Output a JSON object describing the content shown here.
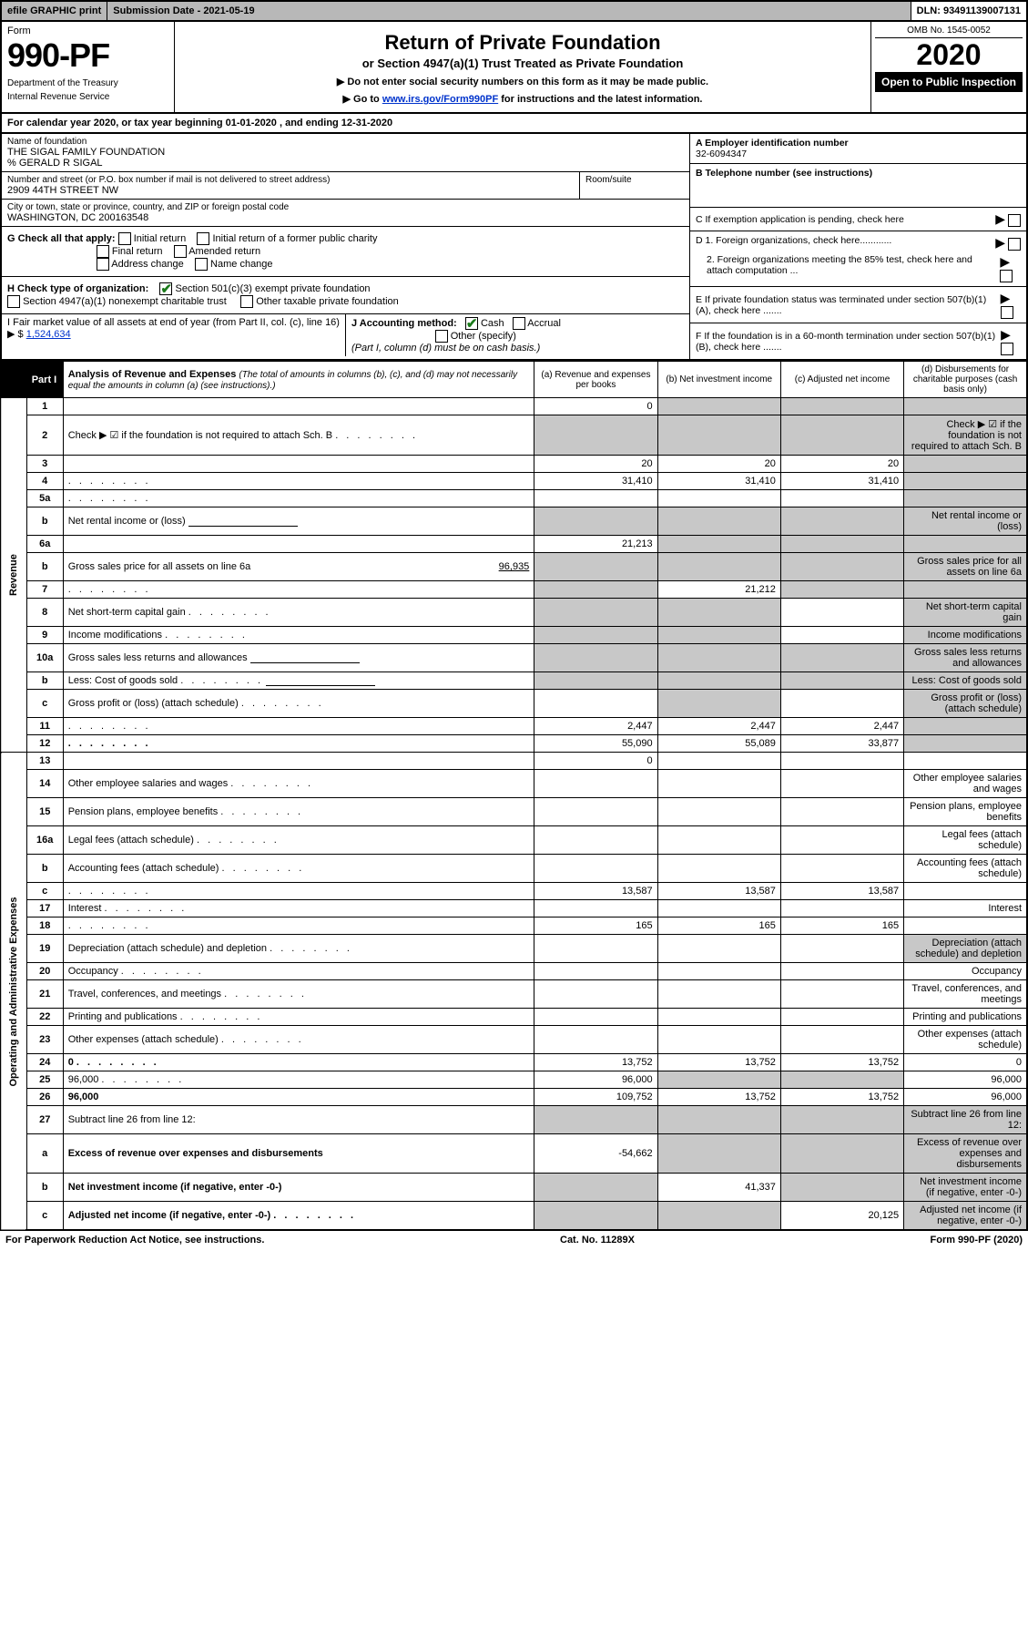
{
  "topbar": {
    "efile": "efile GRAPHIC print",
    "subdate_label": "Submission Date - 2021-05-19",
    "dln": "DLN: 93491139007131"
  },
  "header": {
    "form_label": "Form",
    "form_number": "990-PF",
    "dept1": "Department of the Treasury",
    "dept2": "Internal Revenue Service",
    "title": "Return of Private Foundation",
    "subtitle": "or Section 4947(a)(1) Trust Treated as Private Foundation",
    "instr1": "▶ Do not enter social security numbers on this form as it may be made public.",
    "instr2_pre": "▶ Go to ",
    "instr2_link": "www.irs.gov/Form990PF",
    "instr2_post": " for instructions and the latest information.",
    "omb": "OMB No. 1545-0052",
    "year": "2020",
    "open": "Open to Public Inspection"
  },
  "cal_year": "For calendar year 2020, or tax year beginning 01-01-2020                             , and ending 12-31-2020",
  "info": {
    "name_label": "Name of foundation",
    "name": "THE SIGAL FAMILY FOUNDATION",
    "care_of": "% GERALD R SIGAL",
    "addr_label": "Number and street (or P.O. box number if mail is not delivered to street address)",
    "addr": "2909 44TH STREET NW",
    "room_label": "Room/suite",
    "city_label": "City or town, state or province, country, and ZIP or foreign postal code",
    "city": "WASHINGTON, DC  200163548",
    "ein_label": "A Employer identification number",
    "ein": "32-6094347",
    "tel_label": "B Telephone number (see instructions)",
    "c_label": "C If exemption application is pending, check here",
    "d1": "D 1. Foreign organizations, check here............",
    "d2": "2. Foreign organizations meeting the 85% test, check here and attach computation ...",
    "e_label": "E  If private foundation status was terminated under section 507(b)(1)(A), check here .......",
    "f_label": "F  If the foundation is in a 60-month termination under section 507(b)(1)(B), check here ......."
  },
  "g": {
    "label": "G Check all that apply:",
    "opts": [
      "Initial return",
      "Initial return of a former public charity",
      "Final return",
      "Amended return",
      "Address change",
      "Name change"
    ]
  },
  "h": {
    "label": "H Check type of organization:",
    "opt1": "Section 501(c)(3) exempt private foundation",
    "opt2": "Section 4947(a)(1) nonexempt charitable trust",
    "opt3": "Other taxable private foundation"
  },
  "i": {
    "label": "I Fair market value of all assets at end of year (from Part II, col. (c), line 16) ▶ $",
    "value": "1,524,634"
  },
  "j": {
    "label": "J Accounting method:",
    "cash": "Cash",
    "accrual": "Accrual",
    "other": "Other (specify)",
    "note": "(Part I, column (d) must be on cash basis.)"
  },
  "part1": {
    "label": "Part I",
    "title": "Analysis of Revenue and Expenses",
    "note": "(The total of amounts in columns (b), (c), and (d) may not necessarily equal the amounts in column (a) (see instructions).)",
    "col_a": "(a)   Revenue and expenses per books",
    "col_b": "(b)  Net investment income",
    "col_c": "(c)  Adjusted net income",
    "col_d": "(d)  Disbursements for charitable purposes (cash basis only)"
  },
  "revenue_label": "Revenue",
  "expenses_label": "Operating and Administrative Expenses",
  "rows": [
    {
      "n": "1",
      "d": "",
      "a": "0",
      "b": "",
      "c": "",
      "shade_bcd": true
    },
    {
      "n": "2",
      "d": "Check ▶ ☑ if the foundation is not required to attach Sch. B",
      "dots": true,
      "shade_abcd": true
    },
    {
      "n": "3",
      "d": "",
      "a": "20",
      "b": "20",
      "c": "20",
      "shade_d": true
    },
    {
      "n": "4",
      "d": "",
      "dots": true,
      "a": "31,410",
      "b": "31,410",
      "c": "31,410",
      "shade_d": true
    },
    {
      "n": "5a",
      "d": "",
      "dots": true,
      "a": "",
      "b": "",
      "c": "",
      "shade_d": true
    },
    {
      "n": "b",
      "d": "Net rental income or (loss)",
      "underline": true,
      "shade_abcd": true
    },
    {
      "n": "6a",
      "d": "",
      "a": "21,213",
      "b": "",
      "c": "",
      "shade_bcd": true
    },
    {
      "n": "b",
      "d": "Gross sales price for all assets on line 6a",
      "inline_val": "96,935",
      "shade_abcd": true
    },
    {
      "n": "7",
      "d": "",
      "dots": true,
      "a": "",
      "b": "21,212",
      "c": "",
      "shade_a": true,
      "shade_cd": true
    },
    {
      "n": "8",
      "d": "Net short-term capital gain",
      "dots": true,
      "shade_ab": true,
      "shade_d": true
    },
    {
      "n": "9",
      "d": "Income modifications",
      "dots": true,
      "shade_ab": true,
      "shade_d": true
    },
    {
      "n": "10a",
      "d": "Gross sales less returns and allowances",
      "underline": true,
      "shade_abcd": true
    },
    {
      "n": "b",
      "d": "Less: Cost of goods sold",
      "dots": true,
      "underline": true,
      "shade_abcd": true
    },
    {
      "n": "c",
      "d": "Gross profit or (loss) (attach schedule)",
      "dots": true,
      "shade_b": true,
      "shade_d": true
    },
    {
      "n": "11",
      "d": "",
      "dots": true,
      "a": "2,447",
      "b": "2,447",
      "c": "2,447",
      "shade_d": true
    },
    {
      "n": "12",
      "d": "",
      "dots": true,
      "bold": true,
      "a": "55,090",
      "b": "55,089",
      "c": "33,877",
      "shade_d": true
    },
    {
      "n": "13",
      "d": "",
      "a": "0",
      "b": "",
      "c": ""
    },
    {
      "n": "14",
      "d": "Other employee salaries and wages",
      "dots": true
    },
    {
      "n": "15",
      "d": "Pension plans, employee benefits",
      "dots": true
    },
    {
      "n": "16a",
      "d": "Legal fees (attach schedule)",
      "dots": true
    },
    {
      "n": "b",
      "d": "Accounting fees (attach schedule)",
      "dots": true
    },
    {
      "n": "c",
      "d": "",
      "dots": true,
      "a": "13,587",
      "b": "13,587",
      "c": "13,587"
    },
    {
      "n": "17",
      "d": "Interest",
      "dots": true
    },
    {
      "n": "18",
      "d": "",
      "dots": true,
      "a": "165",
      "b": "165",
      "c": "165"
    },
    {
      "n": "19",
      "d": "Depreciation (attach schedule) and depletion",
      "dots": true,
      "shade_d": true
    },
    {
      "n": "20",
      "d": "Occupancy",
      "dots": true
    },
    {
      "n": "21",
      "d": "Travel, conferences, and meetings",
      "dots": true
    },
    {
      "n": "22",
      "d": "Printing and publications",
      "dots": true
    },
    {
      "n": "23",
      "d": "Other expenses (attach schedule)",
      "dots": true
    },
    {
      "n": "24",
      "d": "0",
      "dots": true,
      "bold": true,
      "a": "13,752",
      "b": "13,752",
      "c": "13,752"
    },
    {
      "n": "25",
      "d": "96,000",
      "dots": true,
      "a": "96,000",
      "b": "",
      "c": "",
      "shade_bc": true
    },
    {
      "n": "26",
      "d": "96,000",
      "bold": true,
      "a": "109,752",
      "b": "13,752",
      "c": "13,752"
    },
    {
      "n": "27",
      "d": "Subtract line 26 from line 12:",
      "shade_abcd": true
    },
    {
      "n": "a",
      "d": "Excess of revenue over expenses and disbursements",
      "bold": true,
      "a": "-54,662",
      "shade_bcd": true
    },
    {
      "n": "b",
      "d": "Net investment income (if negative, enter -0-)",
      "bold": true,
      "b": "41,337",
      "shade_a": true,
      "shade_cd": true
    },
    {
      "n": "c",
      "d": "Adjusted net income (if negative, enter -0-)",
      "bold": true,
      "dots": true,
      "c": "20,125",
      "shade_ab": true,
      "shade_d": true
    }
  ],
  "footer": {
    "left": "For Paperwork Reduction Act Notice, see instructions.",
    "mid": "Cat. No. 11289X",
    "right": "Form 990-PF (2020)"
  }
}
